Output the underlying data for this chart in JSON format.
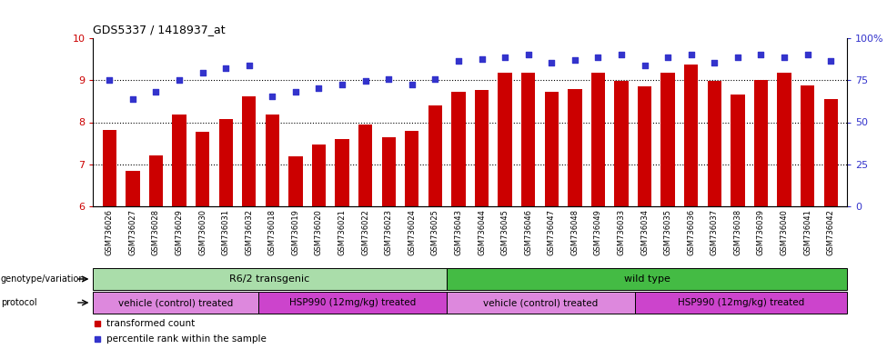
{
  "title": "GDS5337 / 1418937_at",
  "samples": [
    "GSM736026",
    "GSM736027",
    "GSM736028",
    "GSM736029",
    "GSM736030",
    "GSM736031",
    "GSM736032",
    "GSM736018",
    "GSM736019",
    "GSM736020",
    "GSM736021",
    "GSM736022",
    "GSM736023",
    "GSM736024",
    "GSM736025",
    "GSM736043",
    "GSM736044",
    "GSM736045",
    "GSM736046",
    "GSM736047",
    "GSM736048",
    "GSM736049",
    "GSM736033",
    "GSM736034",
    "GSM736035",
    "GSM736036",
    "GSM736037",
    "GSM736038",
    "GSM736039",
    "GSM736040",
    "GSM736041",
    "GSM736042"
  ],
  "bar_values": [
    7.82,
    6.85,
    7.22,
    8.18,
    7.78,
    8.08,
    8.62,
    8.18,
    7.18,
    7.48,
    7.6,
    7.95,
    7.65,
    7.8,
    8.4,
    8.72,
    8.77,
    9.18,
    9.18,
    8.72,
    8.78,
    9.18,
    8.98,
    8.85,
    9.18,
    9.38,
    8.98,
    8.65,
    9.0,
    9.18,
    8.88,
    8.55
  ],
  "scatter_values_left_scale": [
    9.0,
    8.55,
    8.72,
    9.0,
    9.18,
    9.28,
    9.35,
    8.62,
    8.72,
    8.82,
    8.9,
    8.98,
    9.02,
    8.9,
    9.02,
    9.45,
    9.5,
    9.55,
    9.62,
    9.42,
    9.48,
    9.55,
    9.62,
    9.35,
    9.55,
    9.62,
    9.42,
    9.55,
    9.62,
    9.55,
    9.62,
    9.45
  ],
  "ylim_left": [
    6,
    10
  ],
  "ylim_right": [
    0,
    100
  ],
  "yticks_left": [
    6,
    7,
    8,
    9,
    10
  ],
  "yticks_right": [
    0,
    25,
    50,
    75,
    100
  ],
  "bar_color": "#cc0000",
  "scatter_color": "#3333cc",
  "bar_bottom": 6.0,
  "genotype_groups": [
    {
      "label": "R6/2 transgenic",
      "start": 0,
      "end": 14,
      "color": "#aaddaa"
    },
    {
      "label": "wild type",
      "start": 15,
      "end": 31,
      "color": "#44bb44"
    }
  ],
  "protocol_groups": [
    {
      "label": "vehicle (control) treated",
      "start": 0,
      "end": 6,
      "color": "#dd88dd"
    },
    {
      "label": "HSP990 (12mg/kg) treated",
      "start": 7,
      "end": 14,
      "color": "#cc44cc"
    },
    {
      "label": "vehicle (control) treated",
      "start": 15,
      "end": 22,
      "color": "#dd88dd"
    },
    {
      "label": "HSP990 (12mg/kg) treated",
      "start": 23,
      "end": 31,
      "color": "#cc44cc"
    }
  ],
  "legend_items": [
    {
      "label": "transformed count",
      "color": "#cc0000"
    },
    {
      "label": "percentile rank within the sample",
      "color": "#3333cc"
    }
  ],
  "grid_yticks": [
    7,
    8,
    9
  ],
  "right_ytick_labels": [
    "0",
    "25",
    "50",
    "75",
    "100%"
  ],
  "left_color": "#cc0000",
  "right_color": "#3333cc"
}
